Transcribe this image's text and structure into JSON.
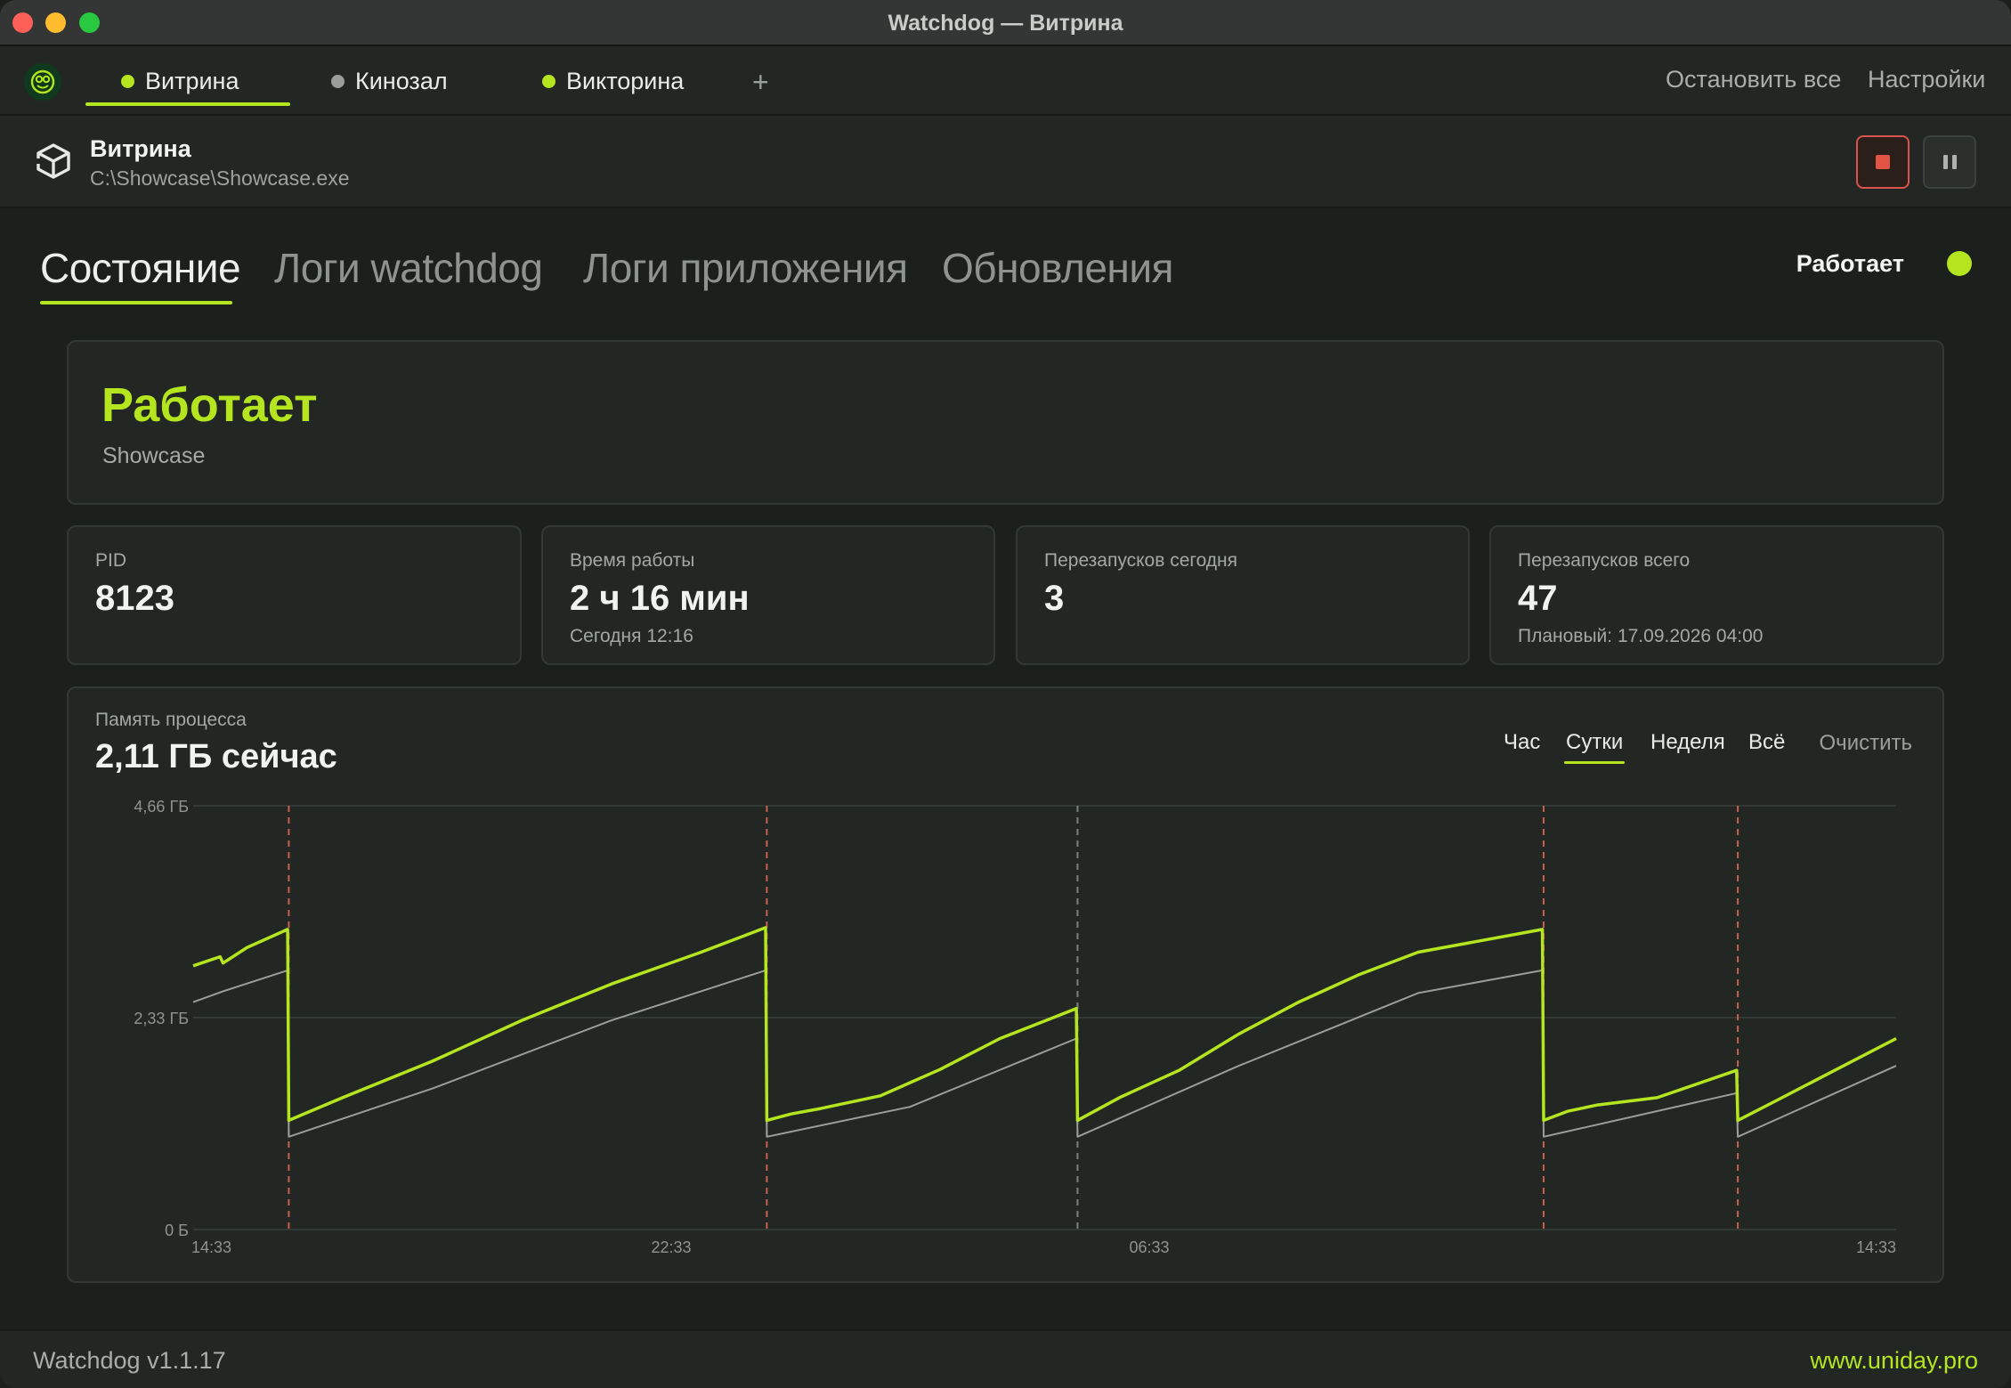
{
  "window": {
    "title": "Watchdog — Витрина"
  },
  "app_tabs": [
    {
      "label": "Витрина",
      "status_color": "#b4e51f"
    },
    {
      "label": "Кинозал",
      "status_color": "#9a9e99"
    },
    {
      "label": "Викторина",
      "status_color": "#b4e51f"
    }
  ],
  "add_tab": "+",
  "top_actions": {
    "stop_all": "Остановить все",
    "settings": "Настройки"
  },
  "app": {
    "name": "Витрина",
    "path": "C:\\Showcase\\Showcase.exe"
  },
  "section_tabs": [
    "Состояние",
    "Логи watchdog",
    "Логи приложения",
    "Обновления"
  ],
  "state_indicator": "Работает",
  "status_card": {
    "status": "Работает",
    "process": "Showcase"
  },
  "stats": [
    {
      "label": "PID",
      "value": "8123",
      "sub": ""
    },
    {
      "label": "Время работы",
      "value": "2 ч 16 мин",
      "sub": "Сегодня 12:16"
    },
    {
      "label": "Перезапусков сегодня",
      "value": "3",
      "sub": ""
    },
    {
      "label": "Перезапусков всего",
      "value": "47",
      "sub": "Плановый: 17.09.2026 04:00"
    }
  ],
  "memory": {
    "label": "Память процесса",
    "current": "2,11 ГБ сейчас",
    "ranges": [
      "Час",
      "Сутки",
      "Неделя",
      "Всё"
    ],
    "active_range": "Сутки",
    "clear": "Очистить"
  },
  "chart_data": {
    "type": "line",
    "y_ticks": [
      "4,66 ГБ",
      "2,33 ГБ",
      "0 Б"
    ],
    "ylim_gb": [
      0,
      4.66
    ],
    "x_ticks": [
      {
        "label": "14:33",
        "hour": 0
      },
      {
        "label": "22:33",
        "hour": 8
      },
      {
        "label": "06:33",
        "hour": 16
      },
      {
        "label": "14:33",
        "hour": 24
      }
    ],
    "restarts": [
      {
        "hour": 1.6,
        "kind": "crash"
      },
      {
        "hour": 9.6,
        "kind": "crash"
      },
      {
        "hour": 14.8,
        "kind": "planned"
      },
      {
        "hour": 22.6,
        "kind": "crash"
      },
      {
        "hour": 25.85,
        "kind": "crash"
      }
    ],
    "series": [
      {
        "color": "#b4e51f",
        "points": [
          [
            0,
            2.9
          ],
          [
            0.45,
            3.0
          ],
          [
            0.5,
            2.93
          ],
          [
            0.9,
            3.1
          ],
          [
            1.58,
            3.3
          ],
          [
            1.6,
            1.2
          ],
          [
            2.5,
            1.45
          ],
          [
            4,
            1.85
          ],
          [
            5.5,
            2.3
          ],
          [
            7,
            2.7
          ],
          [
            8.5,
            3.05
          ],
          [
            9.58,
            3.32
          ],
          [
            9.6,
            1.2
          ],
          [
            10,
            1.27
          ],
          [
            10.5,
            1.33
          ],
          [
            11.5,
            1.47
          ],
          [
            12.5,
            1.76
          ],
          [
            13.5,
            2.1
          ],
          [
            14.78,
            2.43
          ],
          [
            14.8,
            1.2
          ],
          [
            15.5,
            1.45
          ],
          [
            16.5,
            1.75
          ],
          [
            17.5,
            2.15
          ],
          [
            18.5,
            2.5
          ],
          [
            19.5,
            2.8
          ],
          [
            20.5,
            3.05
          ],
          [
            22.58,
            3.3
          ],
          [
            22.6,
            1.2
          ],
          [
            23,
            1.3
          ],
          [
            23.5,
            1.37
          ],
          [
            24.5,
            1.45
          ],
          [
            25.83,
            1.75
          ],
          [
            25.85,
            1.2
          ],
          [
            26.5,
            1.42
          ],
          [
            27.5,
            1.76
          ],
          [
            28.5,
            2.1
          ]
        ]
      },
      {
        "color": "#9a9e99",
        "points": [
          [
            0,
            2.5
          ],
          [
            0.5,
            2.62
          ],
          [
            1.58,
            2.85
          ],
          [
            1.6,
            1.02
          ],
          [
            4,
            1.55
          ],
          [
            7,
            2.3
          ],
          [
            9.58,
            2.85
          ],
          [
            9.6,
            1.02
          ],
          [
            12,
            1.35
          ],
          [
            14.78,
            2.1
          ],
          [
            14.8,
            1.02
          ],
          [
            17.5,
            1.8
          ],
          [
            20.5,
            2.6
          ],
          [
            22.58,
            2.85
          ],
          [
            22.6,
            1.02
          ],
          [
            25.83,
            1.5
          ],
          [
            25.85,
            1.02
          ],
          [
            28.5,
            1.8
          ]
        ]
      }
    ]
  },
  "footer": {
    "version": "Watchdog v1.1.17",
    "site": "www.uniday.pro"
  }
}
